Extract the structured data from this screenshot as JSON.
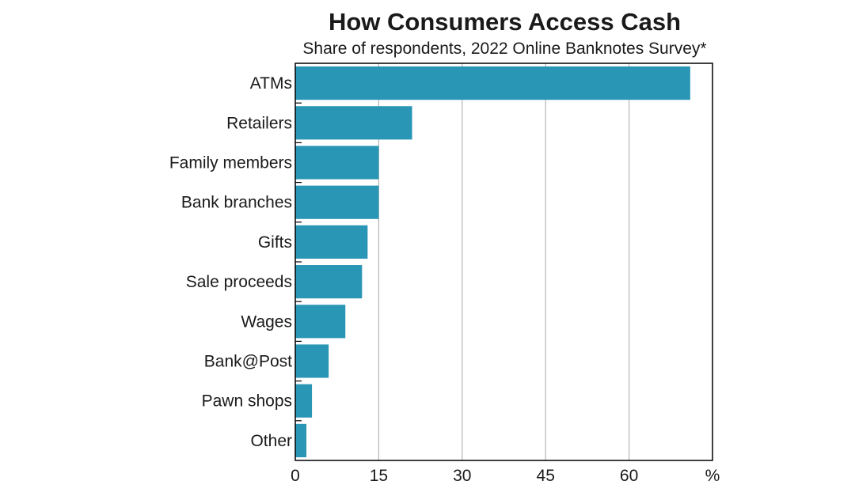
{
  "chart_data": {
    "type": "bar",
    "orientation": "horizontal",
    "title": "How Consumers Access Cash",
    "subtitle": "Share of respondents, 2022 Online Banknotes Survey*",
    "categories": [
      "ATMs",
      "Retailers",
      "Family members",
      "Bank branches",
      "Gifts",
      "Sale proceeds",
      "Wages",
      "Bank@Post",
      "Pawn shops",
      "Other"
    ],
    "values": [
      71,
      21,
      15,
      15,
      13,
      12,
      9,
      6,
      3,
      2
    ],
    "xlim": [
      0,
      75
    ],
    "xticks": [
      0,
      15,
      30,
      45,
      60
    ],
    "unit_label": "%",
    "grid": true,
    "bar_color": "#2a96b5"
  }
}
